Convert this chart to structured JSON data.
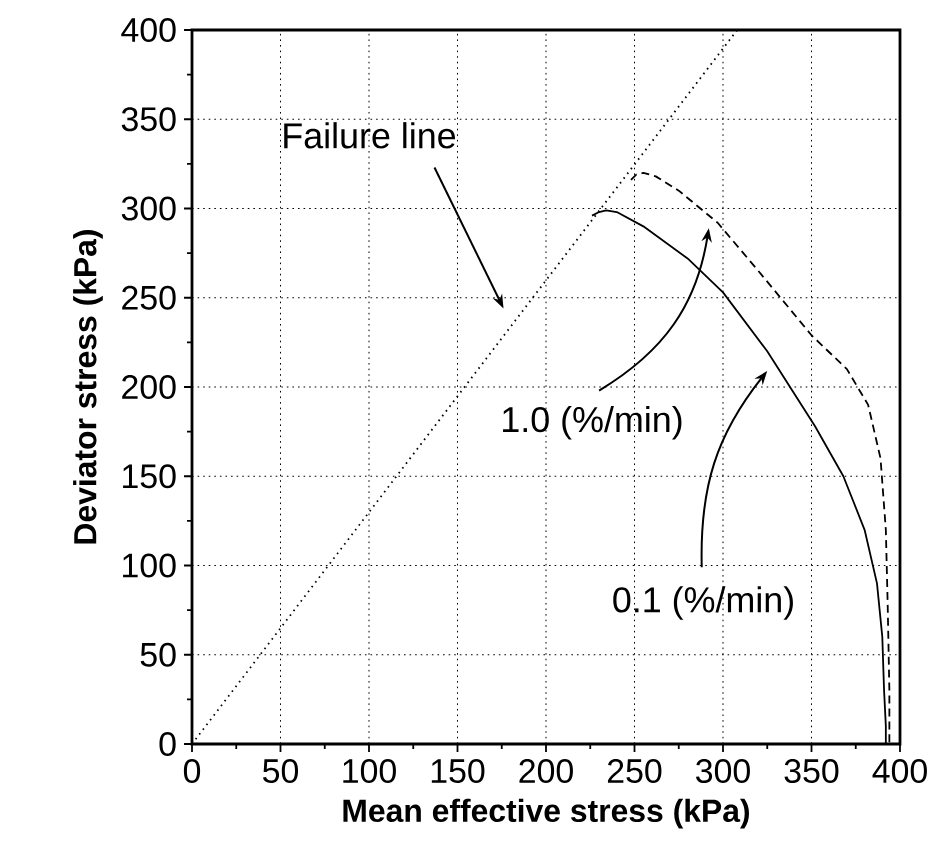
{
  "chart_data": {
    "type": "line",
    "xlabel": "Mean effective stress (kPa)",
    "ylabel": "Deviator stress (kPa)",
    "series": [
      {
        "x": [
          0,
          308
        ],
        "values": [
          0,
          400
        ],
        "color": "#000000",
        "line_style": "dotted"
      },
      {
        "x": [
          248,
          251,
          255,
          262,
          275,
          297,
          320,
          350,
          370,
          382,
          389,
          392,
          393,
          394,
          394
        ],
        "values": [
          316,
          319,
          320,
          318,
          310,
          292,
          265,
          229,
          210,
          190,
          160,
          120,
          80,
          30,
          0
        ],
        "color": "#000000",
        "line_style": "dashed"
      },
      {
        "x": [
          226,
          230,
          234,
          240,
          255,
          280,
          300,
          325,
          352,
          368,
          380,
          387,
          390,
          391,
          392,
          392
        ],
        "values": [
          296,
          298,
          299,
          298,
          290,
          272,
          253,
          220,
          178,
          150,
          120,
          90,
          60,
          30,
          10,
          0
        ],
        "color": "#000000",
        "line_style": "solid"
      }
    ],
    "annotations": [
      "Failure line",
      "1.0 (%/min)",
      "0.1 (%/min)"
    ],
    "xlim": [
      0,
      400
    ],
    "ylim": [
      0,
      400
    ],
    "xticks": [
      0,
      50,
      100,
      150,
      200,
      250,
      300,
      350,
      400
    ],
    "yticks": [
      0,
      50,
      100,
      150,
      200,
      250,
      300,
      350,
      400
    ],
    "grid": true,
    "marker": "none"
  }
}
